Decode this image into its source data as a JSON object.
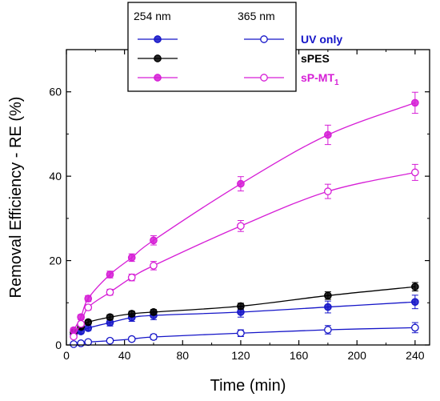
{
  "chart_data": {
    "type": "line",
    "xlabel": "Time (min)",
    "ylabel": "Removal Efficiency - RE (%)",
    "xlim": [
      0,
      250
    ],
    "ylim": [
      0,
      70
    ],
    "x_ticks": [
      0,
      40,
      80,
      120,
      160,
      200,
      240
    ],
    "y_ticks": [
      0,
      20,
      40,
      60
    ],
    "grid": false,
    "legend": {
      "placement": "top-left",
      "col_header_1": "254 nm",
      "col_header_2": "365 nm",
      "rows": [
        {
          "label": "UV only",
          "label_main": "UV only",
          "label_sub": "",
          "color": "#1515c8"
        },
        {
          "label": "sPES",
          "label_main": "sPES",
          "label_sub": "",
          "color": "#000000"
        },
        {
          "label": "sP-MT1",
          "label_main": "sP-MT",
          "label_sub": "1",
          "color": "#d61ed6"
        }
      ]
    },
    "series": [
      {
        "name": "UV only",
        "wavelength": "254 nm",
        "color": "#1515c8",
        "marker": "filled",
        "x": [
          5,
          10,
          15,
          30,
          45,
          60,
          120,
          180,
          240
        ],
        "y": [
          2.5,
          3.2,
          4.0,
          5.3,
          6.5,
          7.0,
          7.8,
          9.0,
          10.2
        ],
        "err": [
          0.5,
          0.5,
          0.6,
          0.8,
          0.9,
          1.0,
          1.2,
          1.4,
          1.6
        ]
      },
      {
        "name": "sPES",
        "wavelength": "254 nm",
        "color": "#000000",
        "marker": "filled",
        "x": [
          5,
          10,
          15,
          30,
          45,
          60,
          120,
          180,
          240
        ],
        "y": [
          3.0,
          4.3,
          5.4,
          6.6,
          7.4,
          7.8,
          9.2,
          11.7,
          13.8
        ],
        "err": [
          0.4,
          0.5,
          0.5,
          0.6,
          0.6,
          0.6,
          0.7,
          0.9,
          1.0
        ]
      },
      {
        "name": "sP-MT1",
        "wavelength": "254 nm",
        "color": "#d61ed6",
        "marker": "filled",
        "x": [
          5,
          10,
          15,
          30,
          45,
          60,
          120,
          180,
          240
        ],
        "y": [
          3.5,
          6.6,
          11.0,
          16.7,
          20.7,
          24.8,
          38.2,
          49.8,
          57.4
        ],
        "err": [
          0.5,
          0.6,
          0.7,
          0.8,
          0.9,
          1.1,
          1.7,
          2.3,
          2.5
        ]
      },
      {
        "name": "UV only",
        "wavelength": "365 nm",
        "color": "#1515c8",
        "marker": "open",
        "x": [
          5,
          10,
          15,
          30,
          45,
          60,
          120,
          180,
          240
        ],
        "y": [
          0.2,
          0.4,
          0.7,
          1.0,
          1.4,
          1.9,
          2.8,
          3.6,
          4.1
        ],
        "err": [
          0.3,
          0.3,
          0.4,
          0.5,
          0.5,
          0.6,
          0.8,
          1.0,
          1.2
        ]
      },
      {
        "name": "sP-MT1",
        "wavelength": "365 nm",
        "color": "#d61ed6",
        "marker": "open",
        "x": [
          5,
          10,
          15,
          30,
          45,
          60,
          120,
          180,
          240
        ],
        "y": [
          2.0,
          5.0,
          8.9,
          12.5,
          16.0,
          18.8,
          28.2,
          36.4,
          40.9
        ],
        "err": [
          0.4,
          0.5,
          0.6,
          0.7,
          0.8,
          1.0,
          1.3,
          1.7,
          1.9
        ]
      }
    ]
  }
}
